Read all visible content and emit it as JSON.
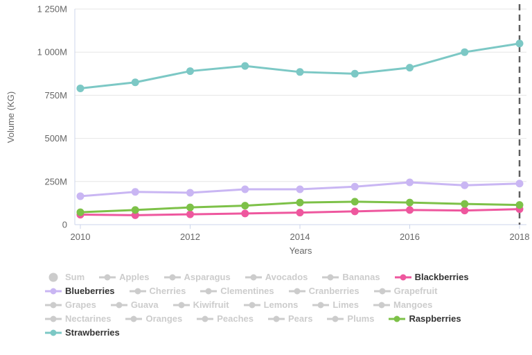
{
  "chart_data": {
    "type": "line",
    "title": "",
    "xlabel": "Years",
    "ylabel": "Volume (KG)",
    "x": [
      2010,
      2011,
      2012,
      2013,
      2014,
      2015,
      2016,
      2017,
      2018
    ],
    "x_ticks": [
      2010,
      2012,
      2014,
      2016,
      2018
    ],
    "x_tick_labels": [
      "2010",
      "2012",
      "2014",
      "2016",
      "2018"
    ],
    "ylim": [
      0,
      1250
    ],
    "y_ticks": [
      0,
      250,
      500,
      750,
      1000,
      1250
    ],
    "y_tick_labels": [
      "0",
      "250M",
      "500M",
      "750M",
      "1 000M",
      "1 250M"
    ],
    "value_unit": "M KG",
    "grid": "horizontal",
    "legend_position": "bottom",
    "plot_line_x": 2018,
    "series": [
      {
        "name": "Blackberries",
        "color": "#ee579e",
        "values": [
          58,
          55,
          60,
          65,
          70,
          77,
          85,
          82,
          90
        ]
      },
      {
        "name": "Blueberries",
        "color": "#c9b6f3",
        "values": [
          165,
          190,
          185,
          205,
          205,
          220,
          245,
          228,
          238
        ]
      },
      {
        "name": "Raspberries",
        "color": "#7dc148",
        "values": [
          72,
          85,
          100,
          110,
          128,
          133,
          128,
          120,
          114
        ]
      },
      {
        "name": "Strawberries",
        "color": "#7cc8c5",
        "values": [
          790,
          825,
          890,
          920,
          885,
          875,
          910,
          1000,
          1050
        ]
      }
    ]
  },
  "legend": {
    "inactive_color": "#cccccc",
    "active_text_color": "#333333",
    "items": [
      {
        "label": "Sum",
        "active": false,
        "marker": "circle"
      },
      {
        "label": "Apples",
        "active": false,
        "marker": "line-circle"
      },
      {
        "label": "Asparagus",
        "active": false,
        "marker": "line-circle"
      },
      {
        "label": "Avocados",
        "active": false,
        "marker": "line-circle"
      },
      {
        "label": "Bananas",
        "active": false,
        "marker": "line-circle"
      },
      {
        "label": "Blackberries",
        "active": true,
        "marker": "line-circle",
        "color": "#ee579e"
      },
      {
        "label": "Blueberries",
        "active": true,
        "marker": "line-circle",
        "color": "#c9b6f3"
      },
      {
        "label": "Cherries",
        "active": false,
        "marker": "line-circle"
      },
      {
        "label": "Clementines",
        "active": false,
        "marker": "line-circle"
      },
      {
        "label": "Cranberries",
        "active": false,
        "marker": "line-circle"
      },
      {
        "label": "Grapefruit",
        "active": false,
        "marker": "line-circle"
      },
      {
        "label": "Grapes",
        "active": false,
        "marker": "line-circle"
      },
      {
        "label": "Guava",
        "active": false,
        "marker": "line-circle"
      },
      {
        "label": "Kiwifruit",
        "active": false,
        "marker": "line-circle"
      },
      {
        "label": "Lemons",
        "active": false,
        "marker": "line-circle"
      },
      {
        "label": "Limes",
        "active": false,
        "marker": "line-circle"
      },
      {
        "label": "Mangoes",
        "active": false,
        "marker": "line-circle"
      },
      {
        "label": "Nectarines",
        "active": false,
        "marker": "line-circle"
      },
      {
        "label": "Oranges",
        "active": false,
        "marker": "line-circle"
      },
      {
        "label": "Peaches",
        "active": false,
        "marker": "line-circle"
      },
      {
        "label": "Pears",
        "active": false,
        "marker": "line-circle"
      },
      {
        "label": "Plums",
        "active": false,
        "marker": "line-circle"
      },
      {
        "label": "Raspberries",
        "active": true,
        "marker": "line-circle",
        "color": "#7dc148"
      },
      {
        "label": "Strawberries",
        "active": true,
        "marker": "line-circle",
        "color": "#7cc8c5"
      }
    ]
  },
  "colors": {
    "background": "#ffffff",
    "grid": "#e6e6e6",
    "axis_line": "#ccd6eb",
    "tick_text": "#666666",
    "plot_line": "#5f5f5f"
  }
}
